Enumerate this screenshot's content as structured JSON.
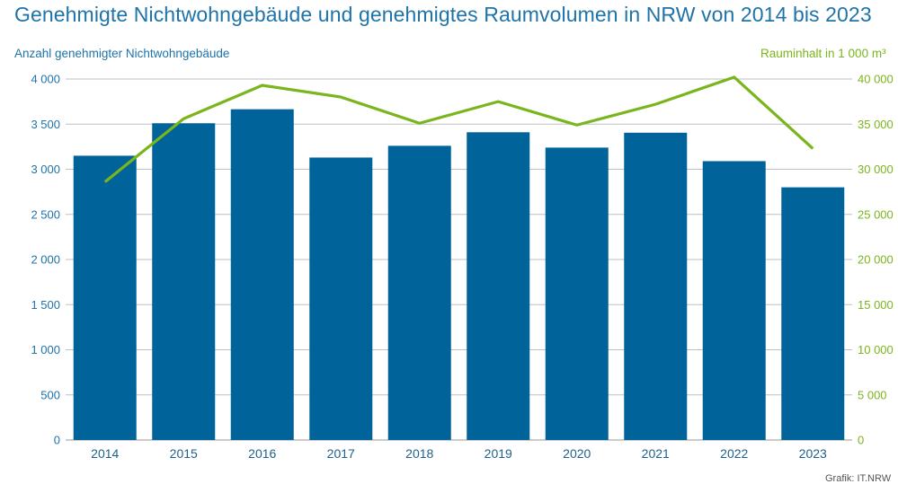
{
  "title": "Genehmigte Nichtwohngebäude und genehmigtes Raumvolumen in NRW von 2014 bis 2023",
  "source": "Grafik: IT.NRW",
  "colors": {
    "bar": "#00649b",
    "line": "#7ab51d",
    "left_axis_text": "#1f73a8",
    "right_axis_text": "#7ab51d",
    "grid": "#bfbfbf"
  },
  "chart_data": {
    "type": "bar",
    "categories": [
      "2014",
      "2015",
      "2016",
      "2017",
      "2018",
      "2019",
      "2020",
      "2021",
      "2022",
      "2023"
    ],
    "series": [
      {
        "name": "Anzahl genehmigter Nichtwohngebäude",
        "type": "bar",
        "axis": "left",
        "values": [
          3150,
          3510,
          3665,
          3130,
          3260,
          3410,
          3240,
          3405,
          3090,
          2800
        ]
      },
      {
        "name": "Rauminhalt in 1 000 m³",
        "type": "line",
        "axis": "right",
        "values": [
          28600,
          35600,
          39300,
          38000,
          35100,
          37500,
          34900,
          37200,
          40200,
          32300
        ]
      }
    ],
    "ylabel": "Anzahl genehmigter Nichtwohngebäude",
    "ylabel_right": "Rauminhalt in 1 000 m³",
    "ylim": [
      0,
      4000
    ],
    "ylim_right": [
      0,
      40000
    ],
    "yticks": [
      "0",
      "500",
      "1 000",
      "1 500",
      "2 000",
      "2 500",
      "3 000",
      "3 500",
      "4 000"
    ],
    "yticks_right": [
      "0",
      "5 000",
      "10 000",
      "15 000",
      "20 000",
      "25 000",
      "30 000",
      "35 000",
      "40 000"
    ],
    "grid": true,
    "legend": "none"
  }
}
